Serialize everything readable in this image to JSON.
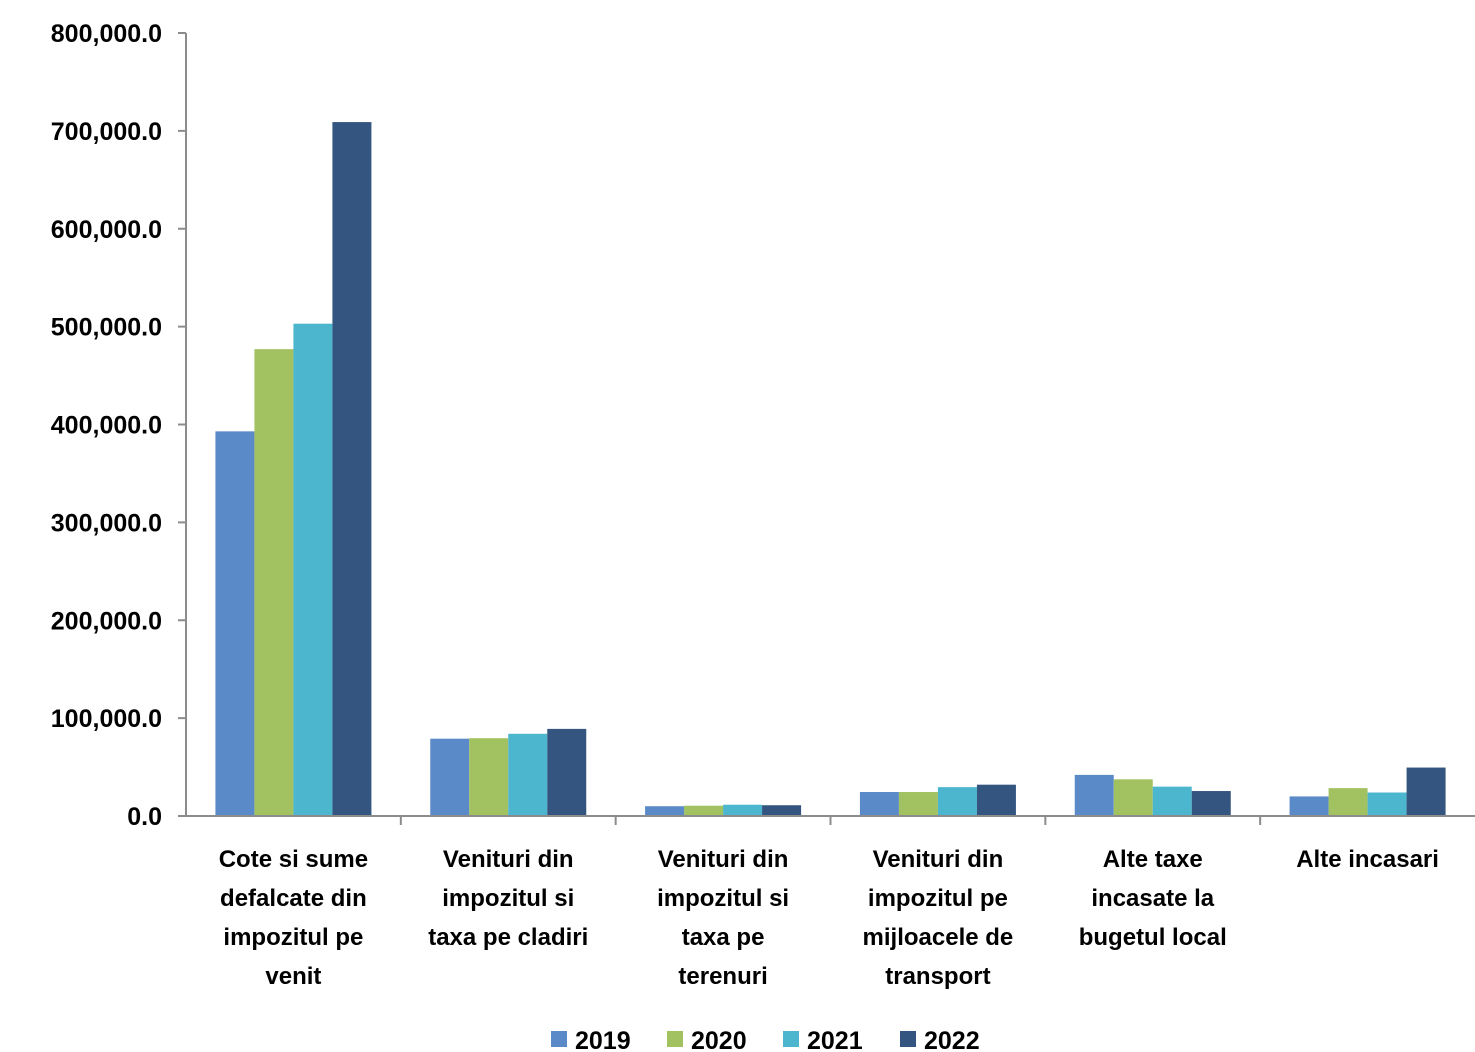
{
  "chart_data": {
    "type": "bar",
    "title": "",
    "xlabel": "",
    "ylabel": "",
    "ylim": [
      0,
      800000
    ],
    "y_ticks": [
      0,
      100000,
      200000,
      300000,
      400000,
      500000,
      600000,
      700000,
      800000
    ],
    "y_tick_labels": [
      "0.0",
      "100,000.0",
      "200,000.0",
      "300,000.0",
      "400,000.0",
      "500,000.0",
      "600,000.0",
      "700,000.0",
      "800,000.0"
    ],
    "grid": false,
    "legend_position": "bottom-center",
    "categories": [
      [
        "Cote si sume",
        "defalcate din",
        "impozitul pe",
        "venit"
      ],
      [
        "Venituri din",
        "impozitul si",
        "taxa pe cladiri"
      ],
      [
        "Venituri din",
        "impozitul si",
        "taxa pe",
        "terenuri"
      ],
      [
        "Venituri din",
        "impozitul pe",
        "mijloacele de",
        "transport"
      ],
      [
        "Alte taxe",
        "incasate la",
        "bugetul local"
      ],
      [
        "Alte incasari"
      ]
    ],
    "series": [
      {
        "name": "2019",
        "color": "#5B8AC9",
        "values": [
          393000,
          79000,
          10000,
          24500,
          42000,
          20000
        ]
      },
      {
        "name": "2020",
        "color": "#A2C262",
        "values": [
          477000,
          79500,
          10500,
          24500,
          37500,
          28500
        ]
      },
      {
        "name": "2021",
        "color": "#4DB6CF",
        "values": [
          503000,
          84000,
          11500,
          29500,
          30000,
          24000
        ]
      },
      {
        "name": "2022",
        "color": "#34557F",
        "values": [
          709000,
          89000,
          11000,
          32000,
          25500,
          49500
        ]
      }
    ]
  }
}
